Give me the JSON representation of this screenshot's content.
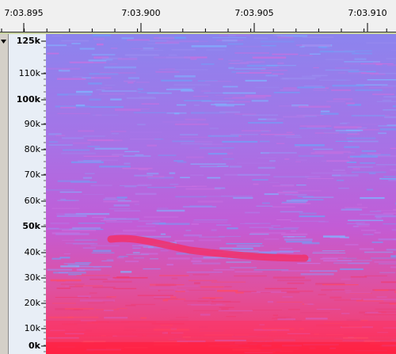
{
  "time_ruler": {
    "labels": [
      "7:03.895",
      "7:03.900",
      "7:03.905",
      "7:03.910"
    ]
  },
  "frequency_ruler": {
    "labels": [
      "125k",
      "110k",
      "100k",
      "90k",
      "80k",
      "70k",
      "60k",
      "50k",
      "40k",
      "30k",
      "20k",
      "10k",
      "0k"
    ]
  }
}
